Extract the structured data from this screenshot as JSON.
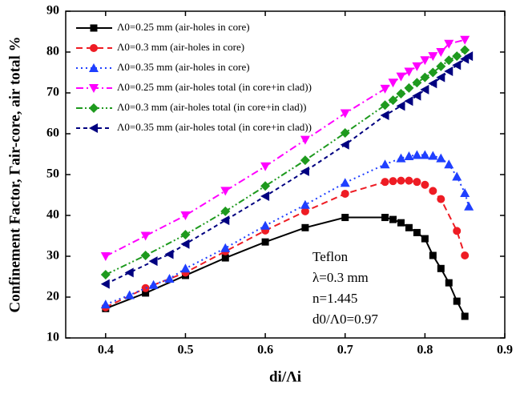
{
  "chart_data": {
    "type": "line",
    "x_label": "di/Λi",
    "y_label": "Confinement Factor, Γair-core, air total %",
    "xlim": [
      0.35,
      0.9
    ],
    "xticks": [
      0.4,
      0.5,
      0.6,
      0.7,
      0.8,
      0.9
    ],
    "ylim": [
      10,
      90
    ],
    "yticks": [
      10,
      20,
      30,
      40,
      50,
      60,
      70,
      80,
      90
    ],
    "legend": "top-left",
    "annotations": [
      "Teflon",
      "λ=0.3 mm",
      "n=1.445",
      "d0/Λ0=0.97"
    ],
    "series": [
      {
        "name": "Λ0=0.25 mm (air-holes in core)",
        "color": "#000000",
        "linestyle": "solid",
        "marker": "square",
        "x": [
          0.4,
          0.45,
          0.5,
          0.55,
          0.6,
          0.65,
          0.7,
          0.75,
          0.76,
          0.77,
          0.78,
          0.79,
          0.8,
          0.81,
          0.82,
          0.83,
          0.84,
          0.85
        ],
        "values": [
          17.2,
          21,
          25.3,
          29.6,
          33.5,
          37,
          39.5,
          39.5,
          39,
          38.2,
          37,
          35.8,
          34.3,
          30.2,
          27,
          23.5,
          19,
          15.3
        ]
      },
      {
        "name": "Λ0=0.3 mm (air-holes in core)",
        "color": "#ee1c24",
        "linestyle": "dash",
        "marker": "circle",
        "x": [
          0.4,
          0.45,
          0.5,
          0.55,
          0.6,
          0.65,
          0.7,
          0.75,
          0.76,
          0.77,
          0.78,
          0.79,
          0.8,
          0.81,
          0.82,
          0.84,
          0.85
        ],
        "values": [
          17.5,
          22.2,
          26,
          31.2,
          36.3,
          41,
          45.3,
          48.2,
          48.4,
          48.5,
          48.5,
          48.2,
          47.5,
          46,
          44,
          36.2,
          30.2
        ]
      },
      {
        "name": "Λ0=0.35 mm (air-holes in core)",
        "color": "#1f3fff",
        "linestyle": "dot",
        "marker": "triangle-up",
        "x": [
          0.4,
          0.43,
          0.46,
          0.48,
          0.5,
          0.55,
          0.6,
          0.65,
          0.7,
          0.75,
          0.77,
          0.78,
          0.79,
          0.8,
          0.81,
          0.82,
          0.83,
          0.84,
          0.85,
          0.855
        ],
        "values": [
          18.2,
          20.5,
          23,
          24.5,
          27,
          32,
          37.5,
          42.6,
          48,
          52.5,
          54,
          54.5,
          54.8,
          54.8,
          54.6,
          54,
          52.5,
          49.5,
          45.5,
          42.2
        ]
      },
      {
        "name": "Λ0=0.25 mm (air-holes total (in core+in clad))",
        "color": "#ff00ff",
        "linestyle": "dashdot",
        "marker": "triangle-down",
        "x": [
          0.4,
          0.45,
          0.5,
          0.55,
          0.6,
          0.65,
          0.7,
          0.75,
          0.76,
          0.77,
          0.78,
          0.79,
          0.8,
          0.81,
          0.82,
          0.83,
          0.85
        ],
        "values": [
          30,
          35,
          40,
          46,
          52,
          58.5,
          65,
          71,
          72.5,
          74,
          75.2,
          76.5,
          78,
          79,
          80,
          82,
          83
        ]
      },
      {
        "name": "Λ0=0.3 mm (air-holes total (in core+in clad))",
        "color": "#1e9a1e",
        "linestyle": "dashdotdot",
        "marker": "diamond",
        "x": [
          0.4,
          0.45,
          0.5,
          0.55,
          0.6,
          0.65,
          0.7,
          0.75,
          0.76,
          0.77,
          0.78,
          0.79,
          0.8,
          0.81,
          0.82,
          0.83,
          0.84,
          0.85
        ],
        "values": [
          25.5,
          30.2,
          35.3,
          41,
          47.2,
          53.5,
          60.2,
          67,
          68.2,
          69.8,
          71.2,
          72.5,
          73.8,
          75,
          76.5,
          78,
          79,
          80.5
        ]
      },
      {
        "name": "Λ0=0.35 mm (air-holes total (in core+in clad))",
        "color": "#000080",
        "linestyle": "shortdash",
        "marker": "triangle-left",
        "x": [
          0.4,
          0.43,
          0.46,
          0.48,
          0.5,
          0.55,
          0.6,
          0.65,
          0.7,
          0.75,
          0.77,
          0.78,
          0.79,
          0.8,
          0.81,
          0.82,
          0.83,
          0.84,
          0.85,
          0.855
        ],
        "values": [
          23.2,
          26,
          28.8,
          30.5,
          33,
          38.8,
          44.7,
          50.8,
          57.3,
          64.5,
          66.8,
          68,
          69.3,
          70.8,
          72.3,
          73.8,
          75.3,
          76.8,
          78.3,
          79
        ]
      }
    ]
  }
}
